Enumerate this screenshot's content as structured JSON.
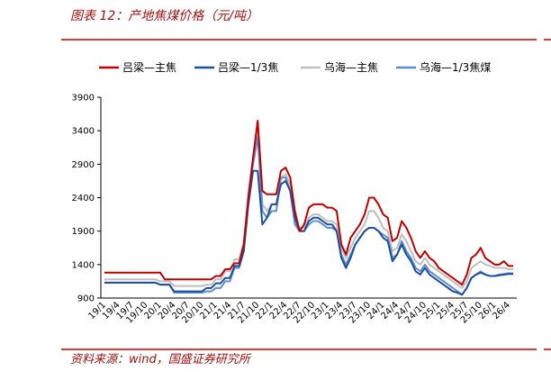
{
  "chart_data": {
    "type": "line",
    "title": "图表 12：产地焦煤价格（元/吨）",
    "source": "资料来源：wind，国盛证券研究所",
    "categories": [
      "19/1",
      null,
      null,
      "19/4",
      null,
      null,
      "19/7",
      null,
      null,
      "19/10",
      null,
      null,
      "20/1",
      null,
      null,
      "20/4",
      null,
      null,
      "20/7",
      null,
      null,
      "20/10",
      null,
      null,
      "21/1",
      null,
      null,
      "21/4",
      null,
      null,
      "21/7",
      null,
      null,
      "21/10",
      null,
      null,
      "22/1",
      null,
      null,
      "22/4",
      null,
      null,
      "22/7",
      null,
      null,
      "22/10",
      null,
      null,
      "23/1",
      null,
      null,
      "23/4",
      null,
      null,
      "23/7",
      null,
      null,
      "23/10",
      null,
      null,
      "24/1",
      null,
      null,
      "24/4",
      null,
      null,
      "24/7",
      null,
      null,
      "24/10",
      null,
      null,
      "25/1",
      null,
      null,
      "25/4",
      null,
      null,
      "25/7",
      null,
      null,
      "25/10",
      null,
      null,
      "26/1",
      null,
      null,
      "26/4",
      null
    ],
    "series": [
      {
        "name": "吕梁—主焦",
        "color": "#c00000",
        "values": [
          1280,
          1280,
          1280,
          1280,
          1280,
          1280,
          1280,
          1280,
          1280,
          1280,
          1280,
          1280,
          1280,
          1180,
          1180,
          1180,
          1180,
          1180,
          1180,
          1180,
          1180,
          1180,
          1180,
          1180,
          1230,
          1230,
          1330,
          1330,
          1420,
          1420,
          1700,
          2400,
          3000,
          3550,
          2500,
          2450,
          2450,
          2450,
          2800,
          2850,
          2700,
          2200,
          1900,
          2000,
          2250,
          2300,
          2300,
          2300,
          2250,
          2250,
          2200,
          1700,
          1550,
          1800,
          1900,
          2000,
          2150,
          2400,
          2400,
          2300,
          2150,
          2100,
          1750,
          1800,
          2050,
          1950,
          1800,
          1600,
          1500,
          1600,
          1500,
          1450,
          1350,
          1300,
          1250,
          1200,
          1150,
          1100,
          1250,
          1500,
          1550,
          1650,
          1500,
          1450,
          1400,
          1400,
          1450,
          1380,
          1380
        ]
      },
      {
        "name": "吕梁—1/3焦",
        "color": "#1f4e9c",
        "values": [
          1130,
          1130,
          1130,
          1130,
          1130,
          1130,
          1130,
          1130,
          1130,
          1130,
          1130,
          1130,
          1100,
          1100,
          1100,
          1000,
          1000,
          1000,
          1000,
          1000,
          1000,
          1000,
          1050,
          1050,
          1120,
          1120,
          1200,
          1200,
          1380,
          1380,
          1600,
          2300,
          2800,
          2800,
          2000,
          2100,
          2300,
          2300,
          2600,
          2650,
          2500,
          2100,
          1900,
          1900,
          2050,
          2100,
          2100,
          2050,
          2000,
          2000,
          1900,
          1500,
          1350,
          1500,
          1700,
          1800,
          1900,
          1950,
          1950,
          1900,
          1800,
          1750,
          1450,
          1550,
          1700,
          1550,
          1450,
          1300,
          1250,
          1350,
          1250,
          1200,
          1150,
          1100,
          1050,
          1000,
          980,
          950,
          1050,
          1200,
          1250,
          1280,
          1250,
          1230,
          1230,
          1240,
          1250,
          1260,
          1260
        ]
      },
      {
        "name": "乌海—主焦",
        "color": "#bfbfbf",
        "values": [
          1180,
          1180,
          1180,
          1180,
          1180,
          1180,
          1180,
          1180,
          1180,
          1180,
          1180,
          1180,
          1150,
          1150,
          1150,
          1080,
          1080,
          1080,
          1080,
          1080,
          1080,
          1080,
          1100,
          1100,
          1180,
          1180,
          1300,
          1300,
          1480,
          1480,
          1750,
          2500,
          3000,
          3450,
          2300,
          2200,
          2300,
          2300,
          2700,
          2750,
          2600,
          2100,
          1950,
          1950,
          2100,
          2150,
          2150,
          2100,
          2050,
          2050,
          2000,
          1650,
          1500,
          1650,
          1800,
          1900,
          2000,
          2200,
          2200,
          2100,
          1950,
          1900,
          1600,
          1650,
          1850,
          1750,
          1600,
          1450,
          1400,
          1500,
          1400,
          1350,
          1300,
          1250,
          1200,
          1150,
          1100,
          1050,
          1150,
          1350,
          1400,
          1450,
          1400,
          1380,
          1350,
          1350,
          1350,
          1330,
          1330
        ]
      },
      {
        "name": "乌海—1/3焦煤",
        "color": "#5b8fd0",
        "values": [
          1130,
          1130,
          1130,
          1130,
          1130,
          1130,
          1130,
          1130,
          1130,
          1130,
          1130,
          1130,
          1100,
          1100,
          1100,
          980,
          980,
          980,
          980,
          980,
          980,
          980,
          1000,
          1000,
          1050,
          1050,
          1150,
          1150,
          1350,
          1350,
          1600,
          2400,
          2900,
          3300,
          2200,
          2100,
          2200,
          2200,
          2700,
          2700,
          2500,
          2000,
          1900,
          1900,
          2000,
          2050,
          2050,
          2000,
          1950,
          1950,
          1900,
          1550,
          1400,
          1550,
          1700,
          1800,
          1900,
          1950,
          1950,
          1900,
          1850,
          1800,
          1500,
          1550,
          1750,
          1600,
          1500,
          1350,
          1300,
          1400,
          1300,
          1250,
          1200,
          1150,
          1100,
          1050,
          1000,
          950,
          1050,
          1200,
          1250,
          1300,
          1250,
          1230,
          1230,
          1250,
          1260,
          1270,
          1270
        ]
      }
    ],
    "ylim": [
      900,
      3900
    ],
    "yticks": [
      900,
      1400,
      1900,
      2400,
      2900,
      3400,
      3900
    ]
  }
}
